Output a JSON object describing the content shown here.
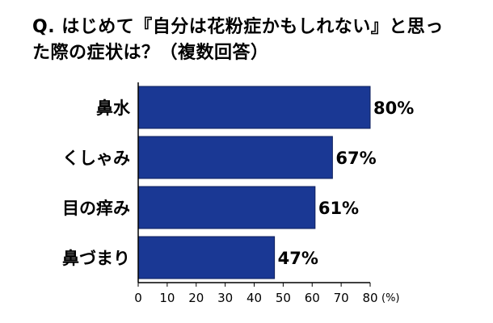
{
  "title_line1": "Q. はじめて『自分は花粉症かもしれない』と思っ",
  "title_line2": "た際の症状は？（複数回答）",
  "chart_data": {
    "type": "bar",
    "orientation": "horizontal",
    "categories": [
      "鼻水",
      "くしゃみ",
      "目の痒み",
      "鼻づまり"
    ],
    "values": [
      80,
      67,
      61,
      47
    ],
    "value_labels": [
      "80%",
      "67%",
      "61%",
      "47%"
    ],
    "xlim": [
      0,
      80
    ],
    "xticks": [
      0,
      10,
      20,
      30,
      40,
      50,
      60,
      70,
      80
    ],
    "unit_label": "(%)",
    "bar_color": "#1a3894",
    "bar_edge_color": "#0d1f5c",
    "grid": false
  }
}
